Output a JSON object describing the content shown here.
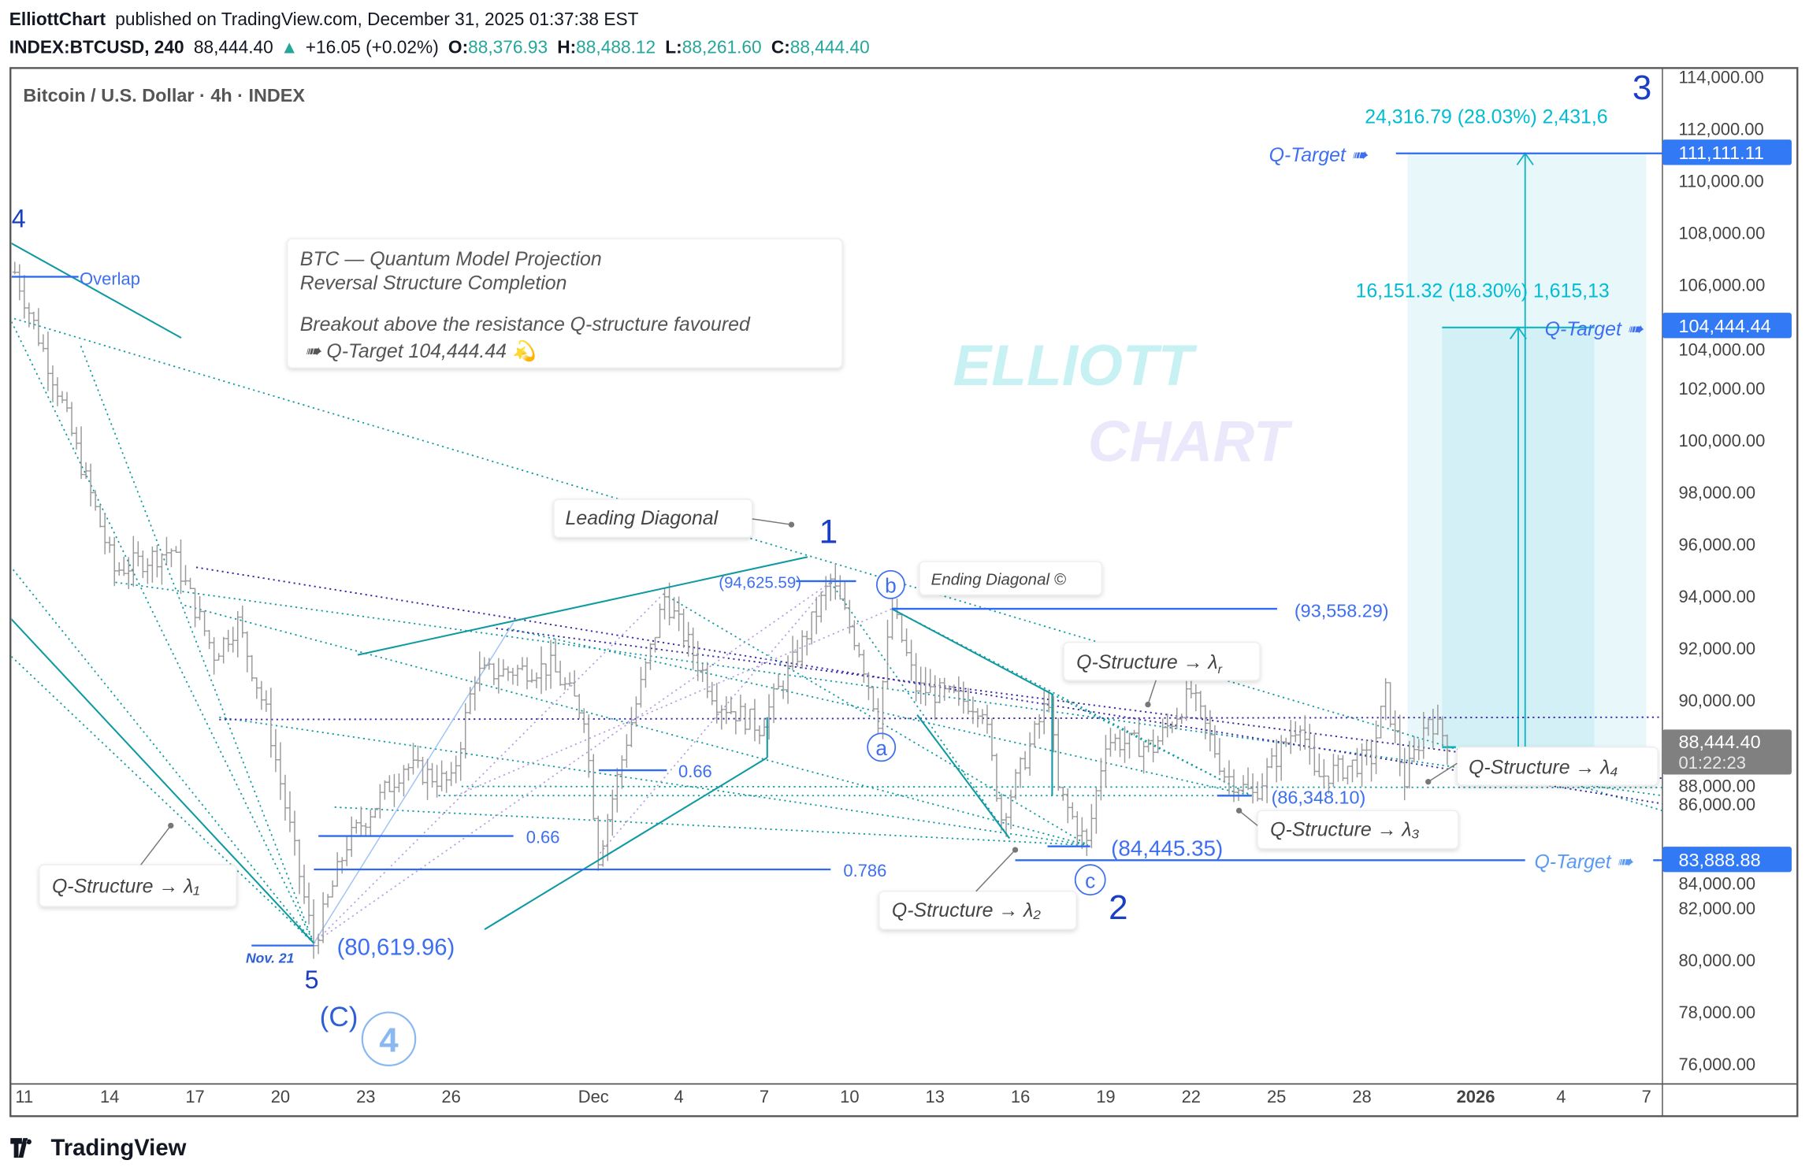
{
  "header": {
    "author": "ElliottChart",
    "published": "published on TradingView.com, December 31, 2025 01:37:38 EST",
    "symbol": "INDEX:BTCUSD, 240",
    "last": "88,444.40",
    "change": "+16.05 (+0.02%)",
    "o_label": "O:",
    "o": "88,376.93",
    "h_label": "H:",
    "h": "88,488.12",
    "l_label": "L:",
    "l": "88,261.60",
    "c_label": "C:",
    "c": "88,444.40",
    "up_color": "#26a69a"
  },
  "chart": {
    "title": "Bitcoin / U.S. Dollar · 4h · INDEX",
    "watermark_1": "ELLIOTT",
    "watermark_2": "CHART"
  },
  "note": {
    "line1": "BTC — Quantum Model Projection",
    "line2": "Reversal Structure Completion",
    "line3": "Breakout above the resistance Q-structure favoured",
    "line4": "➠ Q-Target 104,444.44 💫"
  },
  "annotations": {
    "wave_4_left": "4",
    "overlap": "Overlap",
    "leading_diagonal": "Leading Diagonal",
    "wave_1": "1",
    "high_1": "(94,625.59)",
    "b": "b",
    "ending_diagonal": "Ending Diagonal ©",
    "high_b": "(93,558.29)",
    "q_r": "Q-Structure → λ",
    "q_r_sub": "r",
    "a": "a",
    "fib_066_a": "0.66",
    "fib_066_b": "0.66",
    "fib_0786": "0.786",
    "q_1": "Q-Structure → λ₁",
    "nov21": "Nov. 21",
    "low_5": "(80,619.96)",
    "wave_5": "5",
    "wave_C": "(C)",
    "wave_4_circled": "4",
    "low_c": "(84,445.35)",
    "c": "c",
    "wave_2": "2",
    "q_2": "Q-Structure → λ₂",
    "low_3": "(86,348.10)",
    "q_3": "Q-Structure → λ₃",
    "q_4": "Q-Structure → λ₄",
    "q_target_top": "Q-Target ➠",
    "q_target_mid": "Q-Target ➠",
    "q_target_low": "Q-Target ➠",
    "proj_top": "24,316.79 (28.03%) 2,431,6",
    "proj_mid": "16,151.32 (18.30%) 1,615,13",
    "wave_3": "3"
  },
  "price_axis": {
    "ticks": [
      "114,000.00",
      "112,000.00",
      "110,000.00",
      "108,000.00",
      "106,000.00",
      "104,000.00",
      "102,000.00",
      "100,000.00",
      "98,000.00",
      "96,000.00",
      "94,000.00",
      "92,000.00",
      "90,000.00",
      "88,000.00",
      "86,000.00",
      "84,000.00",
      "82,000.00",
      "80,000.00",
      "78,000.00",
      "76,000.00"
    ],
    "tags": [
      {
        "value": 111111.11,
        "label": "111,111.11",
        "color": "#3179f5"
      },
      {
        "value": 104444.44,
        "label": "104,444.44",
        "color": "#3179f5"
      },
      {
        "value": 83888.88,
        "label": "83,888.88",
        "color": "#3179f5"
      }
    ],
    "last_price": {
      "value": 88444.4,
      "label": "88,444.40",
      "countdown": "01:22:23",
      "color": "#808080"
    }
  },
  "time_axis": [
    {
      "label": "11",
      "date": "2025-11-11"
    },
    {
      "label": "14",
      "date": "2025-11-14"
    },
    {
      "label": "17",
      "date": "2025-11-17"
    },
    {
      "label": "20",
      "date": "2025-11-20"
    },
    {
      "label": "23",
      "date": "2025-11-23"
    },
    {
      "label": "26",
      "date": "2025-11-26"
    },
    {
      "label": "Dec",
      "date": "2025-12-01"
    },
    {
      "label": "4",
      "date": "2025-12-04"
    },
    {
      "label": "7",
      "date": "2025-12-07"
    },
    {
      "label": "10",
      "date": "2025-12-10"
    },
    {
      "label": "13",
      "date": "2025-12-13"
    },
    {
      "label": "16",
      "date": "2025-12-16"
    },
    {
      "label": "19",
      "date": "2025-12-19"
    },
    {
      "label": "22",
      "date": "2025-12-22"
    },
    {
      "label": "25",
      "date": "2025-12-25"
    },
    {
      "label": "28",
      "date": "2025-12-28"
    },
    {
      "label": "2026",
      "date": "2026-01-01"
    },
    {
      "label": "4",
      "date": "2026-01-04"
    },
    {
      "label": "7",
      "date": "2026-01-07"
    }
  ],
  "chart_data": {
    "type": "ohlc",
    "ylim": [
      76000,
      114000
    ],
    "price_path": [
      [
        "2025-11-10T16:00",
        106500
      ],
      [
        "2025-11-12T04:00",
        102000
      ],
      [
        "2025-11-14T04:00",
        95000
      ],
      [
        "2025-11-16T04:00",
        95800
      ],
      [
        "2025-11-17T16:00",
        91800
      ],
      [
        "2025-11-18T12:00",
        93000
      ],
      [
        "2025-11-19T12:00",
        89500
      ],
      [
        "2025-11-21T04:00",
        80620
      ],
      [
        "2025-11-22T08:00",
        84500
      ],
      [
        "2025-11-24T08:00",
        87500
      ],
      [
        "2025-11-26T00:00",
        86800
      ],
      [
        "2025-11-26T20:00",
        91000
      ],
      [
        "2025-11-29T12:00",
        91300
      ],
      [
        "2025-11-30T16:00",
        89500
      ],
      [
        "2025-12-01T04:00",
        84000
      ],
      [
        "2025-12-02T04:00",
        88500
      ],
      [
        "2025-12-03T12:00",
        94000
      ],
      [
        "2025-12-05T08:00",
        90000
      ],
      [
        "2025-12-06T20:00",
        89000
      ],
      [
        "2025-12-08T04:00",
        91800
      ],
      [
        "2025-12-09T08:00",
        94626
      ],
      [
        "2025-12-10T08:00",
        92000
      ],
      [
        "2025-12-11T00:00",
        89300
      ],
      [
        "2025-12-11T12:00",
        93558
      ],
      [
        "2025-12-12T08:00",
        90500
      ],
      [
        "2025-12-14T16:00",
        89800
      ],
      [
        "2025-12-15T08:00",
        85500
      ],
      [
        "2025-12-17T00:00",
        90100
      ],
      [
        "2025-12-17T08:00",
        86500
      ],
      [
        "2025-12-18T08:00",
        84445
      ],
      [
        "2025-12-19T00:00",
        88500
      ],
      [
        "2025-12-20T16:00",
        88200
      ],
      [
        "2025-12-22T00:00",
        90300
      ],
      [
        "2025-12-23T04:00",
        87200
      ],
      [
        "2025-12-24T04:00",
        86348
      ],
      [
        "2025-12-25T20:00",
        89300
      ],
      [
        "2025-12-26T08:00",
        87000
      ],
      [
        "2025-12-28T08:00",
        87800
      ],
      [
        "2025-12-28T20:00",
        90300
      ],
      [
        "2025-12-29T12:00",
        86900
      ],
      [
        "2025-12-30T08:00",
        89400
      ],
      [
        "2025-12-31T00:00",
        88444
      ]
    ],
    "bar_color": "#9a9a9a"
  },
  "footer": {
    "brand": "TradingView"
  }
}
